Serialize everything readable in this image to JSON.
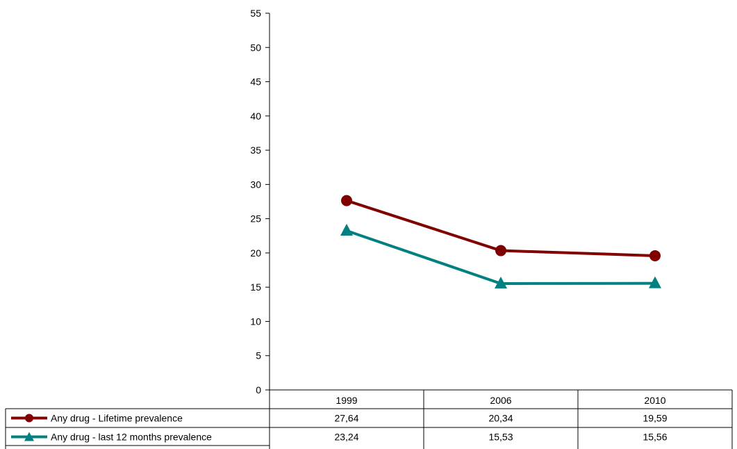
{
  "chart_data": {
    "type": "line",
    "categories": [
      "1999",
      "2006",
      "2010"
    ],
    "series": [
      {
        "name": "Any drug - Lifetime prevalence",
        "values": [
          27.64,
          20.34,
          19.59
        ],
        "labels": [
          "27,64",
          "20,34",
          "19,59"
        ],
        "color": "#800000",
        "marker": "circle"
      },
      {
        "name": "Any drug - last 12 months prevalence",
        "values": [
          23.24,
          15.53,
          15.56
        ],
        "labels": [
          "23,24",
          "15,53",
          "15,56"
        ],
        "color": "#008080",
        "marker": "triangle"
      }
    ],
    "ylim": [
      0,
      55
    ],
    "yticks": [
      "0",
      "5",
      "10",
      "15",
      "20",
      "25",
      "30",
      "35",
      "40",
      "45",
      "50",
      "55"
    ],
    "grid": false,
    "legend": "data table below plot"
  }
}
